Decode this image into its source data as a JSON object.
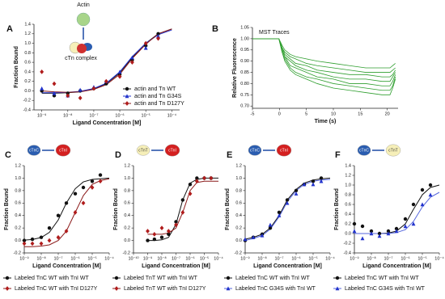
{
  "chart_data": [
    {
      "type": "scatter",
      "panel": "A",
      "xlabel": "Ligand Concentration [M]",
      "ylabel": "Fraction Bound",
      "log_x": true,
      "legend": "lower right",
      "icons": [
        {
          "label": "Actin",
          "color": "#a8d58a"
        },
        {
          "label": "cTn complex",
          "color": "#d03030"
        }
      ],
      "xlim": [
        5e-10,
        0.0002
      ],
      "xticks": [
        {
          "value": 1e-09,
          "label": "10⁻⁹"
        },
        {
          "value": 1e-08,
          "label": "10⁻⁸"
        },
        {
          "value": 1e-07,
          "label": "10⁻⁷"
        },
        {
          "value": 1e-06,
          "label": "10⁻⁶"
        },
        {
          "value": 1e-05,
          "label": "10⁻⁵"
        },
        {
          "value": 0.0001,
          "label": "10⁻⁴"
        }
      ],
      "ylim": [
        -0.4,
        1.4
      ],
      "yticks": [
        -0.4,
        -0.2,
        {
          "value": 0,
          "label": "0.0"
        },
        0.2,
        0.4,
        0.6,
        0.8,
        {
          "value": 1,
          "label": "1.0"
        },
        1.2,
        1.4
      ],
      "x": [
        1e-09,
        3e-09,
        1e-08,
        3e-08,
        1e-07,
        3e-07,
        1e-06,
        3e-06,
        1e-05,
        3e-05
      ],
      "fit_x": [
        1e-09,
        3e-09,
        1e-08,
        3e-08,
        1e-07,
        3e-07,
        1e-06,
        3e-06,
        1e-05,
        3e-05,
        0.0001
      ],
      "series": [
        {
          "name": "actin and Tn WT",
          "marker": "circle",
          "color": "#111111",
          "line_color": "#111111",
          "values": [
            0,
            -0.1,
            -0.05,
            0,
            0.05,
            0.15,
            0.35,
            0.65,
            0.95,
            1.2
          ],
          "fit": [
            -0.05,
            -0.05,
            -0.04,
            -0.02,
            0.04,
            0.15,
            0.38,
            0.7,
            1.0,
            1.2,
            1.3
          ]
        },
        {
          "name": "actin and Tn G34S",
          "marker": "triangle",
          "color": "#2233cc",
          "line_color": "#2233cc",
          "values": [
            0.05,
            -0.05,
            -0.1,
            0.02,
            0.08,
            0.2,
            0.4,
            0.7,
            0.9,
            1.15
          ],
          "fit": [
            -0.04,
            -0.04,
            -0.03,
            -0.01,
            0.05,
            0.16,
            0.4,
            0.72,
            1.0,
            1.18,
            1.28
          ]
        },
        {
          "name": "actin and Tn D127Y",
          "marker": "diamond",
          "color": "#b01c1c",
          "line_color": "#8b1a1a",
          "values": [
            0.4,
            0.15,
            -0.1,
            -0.15,
            0.05,
            0.2,
            0.3,
            0.6,
            1.0,
            1.1
          ],
          "fit": [
            0.0,
            -0.02,
            -0.03,
            -0.02,
            0.03,
            0.13,
            0.35,
            0.68,
            0.98,
            1.2,
            1.3
          ]
        }
      ]
    },
    {
      "type": "line",
      "panel": "B",
      "title": "MST Traces",
      "xlabel": "Time (s)",
      "ylabel": "Relative Fluorescence",
      "xlim": [
        -5,
        22
      ],
      "xticks": [
        -5,
        0,
        5,
        10,
        15,
        20
      ],
      "ylim": [
        0.69,
        1.05
      ],
      "yticks": [
        {
          "value": 0.7,
          "label": "0.70"
        },
        {
          "value": 0.75,
          "label": "0.75"
        },
        {
          "value": 0.8,
          "label": "0.80"
        },
        {
          "value": 0.85,
          "label": "0.85"
        },
        {
          "value": 0.9,
          "label": "0.90"
        },
        {
          "value": 0.95,
          "label": "0.95"
        },
        {
          "value": 1,
          "label": "1.00"
        },
        {
          "value": 1.05,
          "label": "1.05"
        }
      ],
      "x": [
        -5,
        -0.1,
        0.5,
        1,
        2,
        3,
        5,
        7,
        10,
        13,
        16,
        19,
        20.5,
        21,
        21.5
      ],
      "series": [
        {
          "color": "#2e9e2e",
          "values": [
            1,
            1,
            0.94,
            0.9,
            0.86,
            0.84,
            0.82,
            0.8,
            0.78,
            0.77,
            0.76,
            0.75,
            0.75,
            0.78,
            0.82
          ]
        },
        {
          "color": "#2e9e2e",
          "values": [
            1,
            1,
            0.94,
            0.91,
            0.87,
            0.85,
            0.83,
            0.82,
            0.8,
            0.79,
            0.78,
            0.77,
            0.77,
            0.79,
            0.83
          ]
        },
        {
          "color": "#2e9e2e",
          "values": [
            1,
            1,
            0.95,
            0.92,
            0.88,
            0.87,
            0.85,
            0.83,
            0.82,
            0.8,
            0.8,
            0.79,
            0.79,
            0.81,
            0.84
          ]
        },
        {
          "color": "#2e9e2e",
          "values": [
            1,
            1,
            0.95,
            0.92,
            0.9,
            0.88,
            0.86,
            0.85,
            0.83,
            0.82,
            0.82,
            0.81,
            0.81,
            0.83,
            0.85
          ]
        },
        {
          "color": "#2e9e2e",
          "values": [
            1,
            1,
            0.96,
            0.93,
            0.91,
            0.89,
            0.88,
            0.86,
            0.85,
            0.84,
            0.84,
            0.83,
            0.83,
            0.84,
            0.86
          ]
        },
        {
          "color": "#2e9e2e",
          "values": [
            1,
            1,
            0.96,
            0.94,
            0.92,
            0.91,
            0.89,
            0.88,
            0.87,
            0.86,
            0.85,
            0.85,
            0.85,
            0.86,
            0.87
          ]
        },
        {
          "color": "#2e9e2e",
          "values": [
            1,
            1,
            0.97,
            0.95,
            0.93,
            0.92,
            0.91,
            0.9,
            0.89,
            0.88,
            0.87,
            0.87,
            0.87,
            0.88,
            0.89
          ]
        }
      ]
    },
    {
      "type": "scatter",
      "panel": "C",
      "xlabel": "Ligand Concentration [M]",
      "ylabel": "Fraction Bound",
      "log_x": true,
      "legend": "bottom",
      "icons": [
        {
          "label": "cTnC",
          "color": "#2a5db0"
        },
        {
          "label": "cTnI",
          "color": "#d42020"
        }
      ],
      "xlim": [
        1e-09,
        0.0001
      ],
      "xticks": [
        {
          "value": 1e-09,
          "label": "10⁻⁹"
        },
        {
          "value": 1e-08,
          "label": "10⁻⁸"
        },
        {
          "value": 1e-07,
          "label": "10⁻⁷"
        },
        {
          "value": 1e-06,
          "label": "10⁻⁶"
        },
        {
          "value": 1e-05,
          "label": "10⁻⁵"
        },
        {
          "value": 0.0001,
          "label": "10⁻⁴"
        }
      ],
      "ylim": [
        -0.2,
        1.2
      ],
      "yticks": [
        -0.2,
        {
          "value": 0,
          "label": "0.0"
        },
        0.2,
        0.4,
        0.6,
        0.8,
        {
          "value": 1,
          "label": "1.0"
        },
        1.2
      ],
      "x": [
        1e-09,
        3e-09,
        1e-08,
        3e-08,
        1e-07,
        3e-07,
        1e-06,
        3e-06,
        1e-05,
        3e-05
      ],
      "fit_x": [
        1e-09,
        3e-09,
        1e-08,
        3e-08,
        1e-07,
        3e-07,
        1e-06,
        3e-06,
        1e-05,
        3e-05,
        0.0001
      ],
      "series": [
        {
          "name": "Labeled TnC WT with TnI WT",
          "marker": "circle",
          "color": "#111111",
          "line_color": "#111111",
          "values": [
            0,
            0.02,
            0.05,
            0.2,
            0.4,
            0.6,
            0.75,
            0.85,
            0.95,
            1.05
          ],
          "fit": [
            0.005,
            0.015,
            0.048,
            0.13,
            0.33,
            0.6,
            0.83,
            0.94,
            0.98,
            0.99,
            1.0
          ]
        },
        {
          "name": "Labeled TnC WT with TnI D127Y",
          "marker": "diamond",
          "color": "#b01c1c",
          "line_color": "#8b1a1a",
          "values": [
            -0.05,
            -0.05,
            -0.05,
            0,
            0.05,
            0.15,
            0.45,
            0.6,
            0.85,
            0.95
          ],
          "fit": [
            -0.1,
            -0.1,
            -0.09,
            -0.07,
            0.0,
            0.15,
            0.45,
            0.72,
            0.9,
            0.96,
            0.99
          ]
        }
      ]
    },
    {
      "type": "scatter",
      "panel": "D",
      "xlabel": "Ligand Concentration [M]",
      "ylabel": "Fraction Bound",
      "log_x": true,
      "legend": "bottom",
      "icons": [
        {
          "label": "cTnT",
          "color": "#f6efb8"
        },
        {
          "label": "cTnI",
          "color": "#d42020"
        }
      ],
      "xlim": [
        1e-10,
        0.0001
      ],
      "xticks": [
        {
          "value": 1e-10,
          "label": "10⁻¹⁰"
        },
        {
          "value": 1e-09,
          "label": "10⁻⁹"
        },
        {
          "value": 1e-08,
          "label": "10⁻⁸"
        },
        {
          "value": 1e-07,
          "label": "10⁻⁷"
        },
        {
          "value": 1e-06,
          "label": "10⁻⁶"
        },
        {
          "value": 1e-05,
          "label": "10⁻⁵"
        },
        {
          "value": 0.0001,
          "label": "10⁻⁴"
        }
      ],
      "ylim": [
        -0.2,
        1.2
      ],
      "yticks": [
        -0.2,
        {
          "value": 0,
          "label": "0.0"
        },
        0.2,
        0.4,
        0.6,
        0.8,
        {
          "value": 1,
          "label": "1.0"
        },
        1.2
      ],
      "x": [
        1e-09,
        3e-09,
        1e-08,
        3e-08,
        1e-07,
        3e-07,
        1e-06,
        3e-06,
        1e-05,
        3e-05
      ],
      "fit_x": [
        1e-09,
        3e-09,
        1e-08,
        3e-08,
        1e-07,
        3e-07,
        1e-06,
        3e-06,
        1e-05,
        3e-05,
        0.0001
      ],
      "series": [
        {
          "name": "Labeled TnT WT with TnI WT",
          "marker": "circle",
          "color": "#111111",
          "line_color": "#111111",
          "values": [
            0,
            0.02,
            0.05,
            0.1,
            0.3,
            0.65,
            0.9,
            1.0,
            1.0,
            1.0
          ],
          "fit": [
            0,
            0,
            0.01,
            0.05,
            0.26,
            0.65,
            0.92,
            0.98,
            1.0,
            1.0,
            1.0
          ]
        },
        {
          "name": "Labeled TnT WT with TnI D127Y",
          "marker": "diamond",
          "color": "#b01c1c",
          "line_color": "#8b1a1a",
          "values": [
            0.15,
            0.1,
            0.2,
            0.15,
            0.25,
            0.45,
            0.75,
            0.95,
            1.0,
            1.0
          ],
          "fit": [
            0.1,
            0.1,
            0.1,
            0.12,
            0.2,
            0.45,
            0.8,
            0.93,
            0.95,
            0.95,
            0.95
          ]
        }
      ]
    },
    {
      "type": "scatter",
      "panel": "E",
      "xlabel": "Ligand Concentration [M]",
      "ylabel": "Fraction Bound",
      "log_x": true,
      "legend": "bottom",
      "icons": [
        {
          "label": "cTnC",
          "color": "#2a5db0"
        },
        {
          "label": "cTnI",
          "color": "#d42020"
        }
      ],
      "xlim": [
        1e-09,
        0.0001
      ],
      "xticks": [
        {
          "value": 1e-09,
          "label": "10⁻⁹"
        },
        {
          "value": 1e-08,
          "label": "10⁻⁸"
        },
        {
          "value": 1e-07,
          "label": "10⁻⁷"
        },
        {
          "value": 1e-06,
          "label": "10⁻⁶"
        },
        {
          "value": 1e-05,
          "label": "10⁻⁵"
        },
        {
          "value": 0.0001,
          "label": "10⁻⁴"
        }
      ],
      "ylim": [
        -0.2,
        1.2
      ],
      "yticks": [
        -0.2,
        {
          "value": 0,
          "label": "0.0"
        },
        0.2,
        0.4,
        0.6,
        0.8,
        {
          "value": 1,
          "label": "1.0"
        },
        1.2
      ],
      "x": [
        1e-09,
        3e-09,
        1e-08,
        3e-08,
        1e-07,
        3e-07,
        1e-06,
        3e-06,
        1e-05,
        3e-05
      ],
      "fit_x": [
        1e-09,
        3e-09,
        1e-08,
        3e-08,
        1e-07,
        3e-07,
        1e-06,
        3e-06,
        1e-05,
        3e-05,
        0.0001
      ],
      "series": [
        {
          "name": "Labeled TnC WT with TnI WT",
          "marker": "circle",
          "color": "#111111",
          "line_color": "#111111",
          "values": [
            0,
            0.05,
            0.1,
            0.2,
            0.45,
            0.65,
            0.8,
            0.9,
            0.95,
            1.0
          ],
          "fit": [
            0.02,
            0.05,
            0.1,
            0.2,
            0.4,
            0.65,
            0.82,
            0.92,
            0.97,
            0.99,
            1.0
          ]
        },
        {
          "name": "Labeled TnC G34S with TnI WT",
          "marker": "triangle",
          "color": "#2233cc",
          "line_color": "#5566dd",
          "values": [
            0.02,
            0.05,
            0.08,
            0.25,
            0.4,
            0.6,
            0.75,
            0.9,
            0.9,
            0.95
          ],
          "fit": [
            0.0,
            0.03,
            0.08,
            0.18,
            0.38,
            0.62,
            0.8,
            0.9,
            0.95,
            0.97,
            0.98
          ]
        }
      ]
    },
    {
      "type": "scatter",
      "panel": "F",
      "xlabel": "Ligand Concentration [M]",
      "ylabel": "Fraction Bound",
      "log_x": true,
      "legend": "bottom",
      "icons": [
        {
          "label": "cTnC",
          "color": "#2a5db0"
        },
        {
          "label": "cTnT",
          "color": "#f6efb8"
        }
      ],
      "xlim": [
        1e-09,
        0.0001
      ],
      "xticks": [
        {
          "value": 1e-09,
          "label": "10⁻⁹"
        },
        {
          "value": 1e-08,
          "label": "10⁻⁸"
        },
        {
          "value": 1e-07,
          "label": "10⁻⁷"
        },
        {
          "value": 1e-06,
          "label": "10⁻⁶"
        },
        {
          "value": 1e-05,
          "label": "10⁻⁵"
        },
        {
          "value": 0.0001,
          "label": "10⁻⁴"
        }
      ],
      "ylim": [
        -0.4,
        1.4
      ],
      "yticks": [
        -0.4,
        -0.2,
        {
          "value": 0,
          "label": "0.0"
        },
        0.2,
        0.4,
        0.6,
        0.8,
        {
          "value": 1,
          "label": "1.0"
        },
        1.2,
        1.4
      ],
      "x": [
        1e-09,
        3e-09,
        1e-08,
        3e-08,
        1e-07,
        3e-07,
        1e-06,
        3e-06,
        1e-05,
        3e-05
      ],
      "fit_x": [
        1e-09,
        3e-09,
        1e-08,
        3e-08,
        1e-07,
        3e-07,
        1e-06,
        3e-06,
        1e-05,
        3e-05,
        0.0001
      ],
      "series": [
        {
          "name": "Labeled TnC WT with TnI WT",
          "marker": "circle",
          "color": "#111111",
          "line_color": "#111111",
          "values": [
            0.2,
            0.15,
            0.05,
            0.0,
            0.05,
            0.1,
            0.3,
            0.6,
            0.9,
            1.0
          ],
          "fit": [
            0,
            0,
            0,
            0,
            0.01,
            0.05,
            0.2,
            0.5,
            0.8,
            0.95,
            1.0
          ]
        },
        {
          "name": "Labeled TnC G34S with TnI WT",
          "marker": "triangle",
          "color": "#2233cc",
          "line_color": "#5566dd",
          "values": [
            0.05,
            -0.1,
            0.0,
            -0.05,
            0.0,
            0.05,
            0.15,
            0.2,
            0.6,
            0.8
          ],
          "fit": [
            0,
            0,
            0,
            0,
            0,
            0.02,
            0.08,
            0.25,
            0.55,
            0.75,
            0.85
          ]
        }
      ]
    }
  ]
}
